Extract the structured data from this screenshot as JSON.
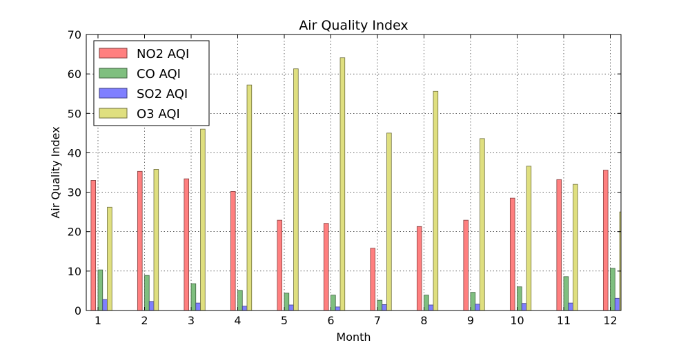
{
  "chart_data": {
    "type": "bar",
    "title": "Air Quality Index",
    "xlabel": "Month",
    "ylabel": "Air Quality Index",
    "categories": [
      "1",
      "2",
      "3",
      "4",
      "5",
      "6",
      "7",
      "8",
      "9",
      "10",
      "11",
      "12"
    ],
    "ylim": [
      0,
      70
    ],
    "yticks": [
      0,
      10,
      20,
      30,
      40,
      50,
      60,
      70
    ],
    "grid": true,
    "legend_position": "top-left",
    "series": [
      {
        "name": "NO2 AQI",
        "color": "#ff7f7f",
        "edge": "#7f3f3f",
        "values": [
          33,
          35.3,
          33.4,
          30.2,
          22.9,
          22.1,
          15.8,
          21.3,
          22.9,
          28.5,
          33.2,
          35.6
        ]
      },
      {
        "name": "CO AQI",
        "color": "#7fbf7f",
        "edge": "#3f5f3f",
        "values": [
          10.3,
          8.9,
          6.8,
          5.1,
          4.4,
          3.9,
          2.6,
          3.9,
          4.6,
          6.0,
          8.6,
          10.7
        ]
      },
      {
        "name": "SO2 AQI",
        "color": "#7f7fff",
        "edge": "#3f3f7f",
        "values": [
          2.8,
          2.3,
          1.9,
          1.1,
          1.4,
          0.9,
          1.5,
          1.4,
          1.6,
          1.8,
          1.9,
          3.1
        ]
      },
      {
        "name": "O3 AQI",
        "color": "#dfdf7f",
        "edge": "#6f6f3f",
        "values": [
          26.2,
          35.8,
          46.0,
          57.2,
          61.3,
          64.1,
          45.0,
          55.6,
          43.6,
          36.6,
          32.0,
          25.0
        ]
      }
    ]
  }
}
